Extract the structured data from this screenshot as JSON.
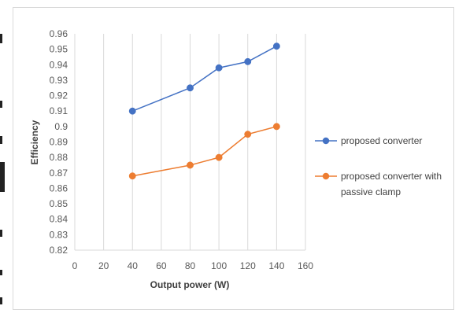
{
  "chart_data": {
    "type": "line",
    "xlabel": "Output power (W)",
    "ylabel": "Efficiency",
    "xlim": [
      0,
      160
    ],
    "ylim": [
      0.82,
      0.96
    ],
    "xticks": [
      "0",
      "20",
      "40",
      "60",
      "80",
      "100",
      "120",
      "140",
      "160"
    ],
    "yticks": [
      "0.82",
      "0.83",
      "0.84",
      "0.85",
      "0.86",
      "0.87",
      "0.88",
      "0.89",
      "0.9",
      "0.91",
      "0.92",
      "0.93",
      "0.94",
      "0.95",
      "0.96"
    ],
    "grid": "vertical",
    "legend_position": "right",
    "series": [
      {
        "name": "proposed converter",
        "color": "#4472C4",
        "x": [
          40,
          80,
          100,
          120,
          140
        ],
        "y": [
          0.91,
          0.925,
          0.938,
          0.942,
          0.952
        ]
      },
      {
        "name": "proposed converter with passive clamp",
        "legend_lines": [
          "proposed converter with",
          "passive clamp"
        ],
        "color": "#ED7D31",
        "x": [
          40,
          80,
          100,
          120,
          140
        ],
        "y": [
          0.868,
          0.875,
          0.88,
          0.895,
          0.9
        ]
      }
    ]
  }
}
